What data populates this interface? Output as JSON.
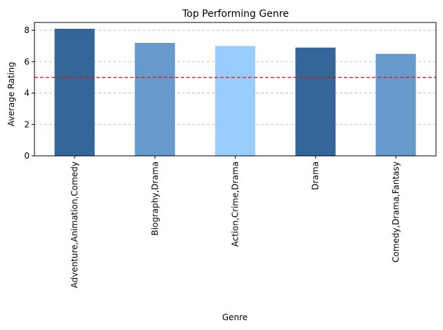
{
  "chart_data": {
    "type": "bar",
    "title": "Top Performing Genre",
    "xlabel": "Genre",
    "ylabel": "Average Rating",
    "categories": [
      "Adventure,Animation,Comedy",
      "Biography,Drama",
      "Action,Crime,Drama",
      "Drama",
      "Comedy,Drama,Fantasy"
    ],
    "values": [
      8.1,
      7.2,
      7.0,
      6.9,
      6.5
    ],
    "bar_colors": [
      "#336699",
      "#6699cc",
      "#99ccff",
      "#336699",
      "#6699cc"
    ],
    "ylim": [
      0,
      8.5
    ],
    "yticks": [
      0,
      2,
      4,
      6,
      8
    ],
    "reference_line": {
      "value": 5,
      "color": "#ff0000",
      "style": "dashed"
    },
    "grid": {
      "axis": "y",
      "style": "dashed",
      "color": "#c0c0c0"
    },
    "legend": "none"
  }
}
